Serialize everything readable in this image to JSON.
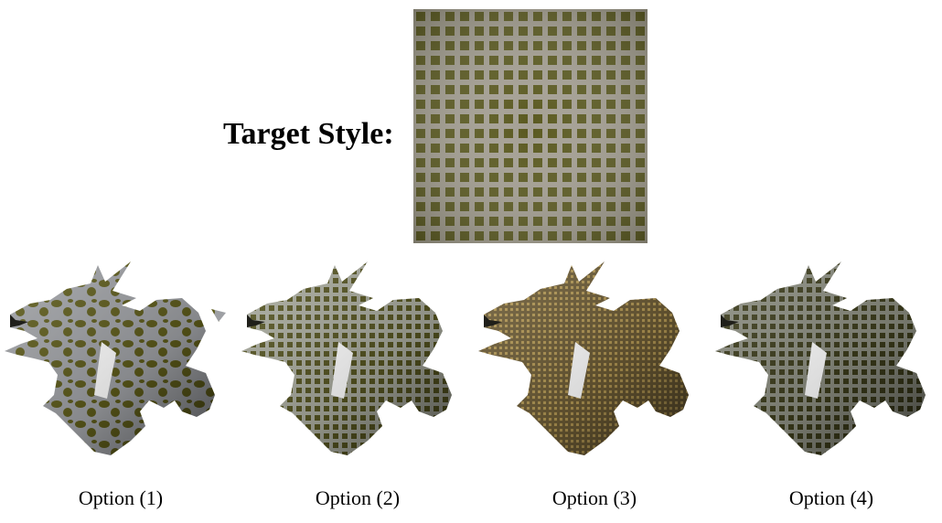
{
  "target": {
    "label": "Target Style:",
    "texture": {
      "cell_color": "#5b5a1e",
      "line_color": "#a6a296",
      "base_color": "#6d6b4e"
    }
  },
  "options": [
    {
      "label": "Option (1)",
      "pattern": "blotch",
      "base_color": "#9ea0a4",
      "spot_color": "#5c5a1a"
    },
    {
      "label": "Option (2)",
      "pattern": "grid",
      "base_color": "#8f9283",
      "spot_color": "#4f4e1c"
    },
    {
      "label": "Option (3)",
      "pattern": "fine",
      "base_color": "#7b6a45",
      "spot_color": "#a68a49"
    },
    {
      "label": "Option (4)",
      "pattern": "grid",
      "base_color": "#6c6e62",
      "spot_color": "#3d3d1e"
    }
  ]
}
